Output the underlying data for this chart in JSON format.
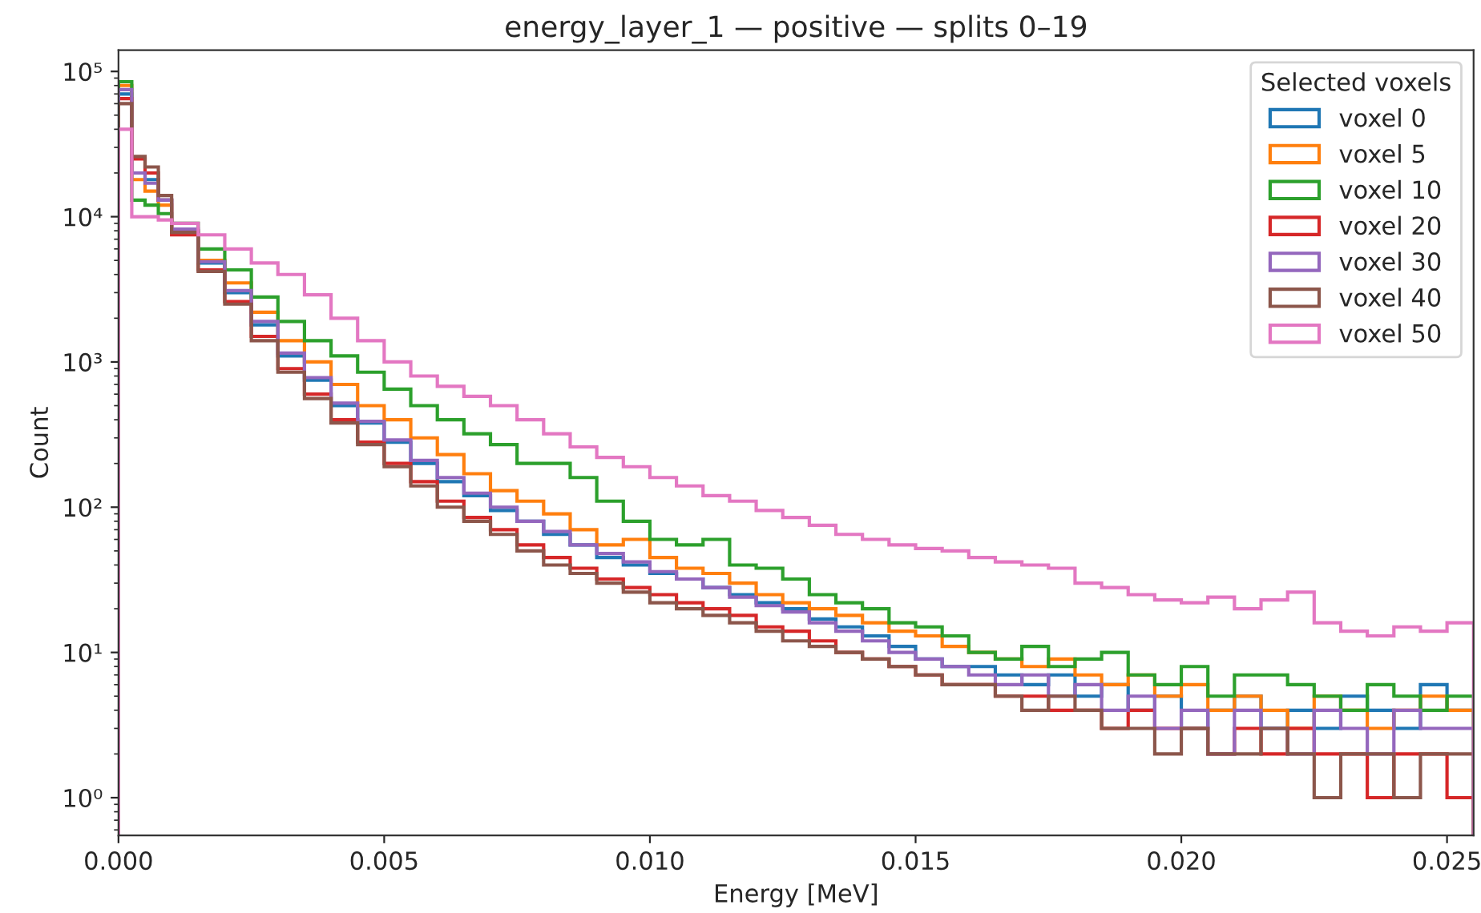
{
  "chart_data": {
    "type": "histogram",
    "title": "energy_layer_1 — positive — splits 0–19",
    "xlabel": "Energy [MeV]",
    "ylabel": "Count",
    "legend_title": "Selected voxels",
    "legend": "top right",
    "grid": false,
    "log": "y",
    "xlim": [
      0,
      0.0255
    ],
    "xticks": [
      {
        "value": 0,
        "label": "0.000"
      },
      {
        "value": 0.005,
        "label": "0.005"
      },
      {
        "value": 0.01,
        "label": "0.010"
      },
      {
        "value": 0.015,
        "label": "0.015"
      },
      {
        "value": 0.02,
        "label": "0.020"
      },
      {
        "value": 0.025,
        "label": "0.025"
      }
    ],
    "ylim": [
      0.55,
      140000
    ],
    "yticks": [
      {
        "value": 1,
        "label": "10⁰"
      },
      {
        "value": 10,
        "label": "10¹"
      },
      {
        "value": 100,
        "label": "10²"
      },
      {
        "value": 1000,
        "label": "10³"
      },
      {
        "value": 10000,
        "label": "10⁴"
      },
      {
        "value": 100000,
        "label": "10⁵"
      }
    ],
    "bins": [
      0,
      0.00025,
      0.0005,
      0.00075,
      0.001,
      0.0015,
      0.002,
      0.0025,
      0.003,
      0.0035,
      0.004,
      0.0045,
      0.005,
      0.0055,
      0.006,
      0.0065,
      0.007,
      0.0075,
      0.008,
      0.0085,
      0.009,
      0.0095,
      0.01,
      0.0105,
      0.011,
      0.0115,
      0.012,
      0.0125,
      0.013,
      0.0135,
      0.014,
      0.0145,
      0.015,
      0.0155,
      0.016,
      0.0165,
      0.017,
      0.0175,
      0.018,
      0.0185,
      0.019,
      0.0195,
      0.02,
      0.0205,
      0.021,
      0.0215,
      0.022,
      0.0225,
      0.023,
      0.0235,
      0.024,
      0.0245,
      0.025,
      0.0255
    ],
    "series": [
      {
        "name": "voxel 0",
        "color": "#1f77b4",
        "values": [
          70000,
          20000,
          18000,
          13000,
          8000,
          4800,
          3000,
          1800,
          1100,
          750,
          500,
          380,
          280,
          200,
          150,
          120,
          95,
          80,
          65,
          55,
          45,
          40,
          35,
          32,
          28,
          25,
          22,
          20,
          17,
          15,
          13,
          11,
          9,
          8,
          8,
          7,
          6,
          7,
          5,
          6,
          4,
          5,
          3,
          4,
          5,
          3,
          4,
          3,
          5,
          4,
          3,
          6,
          4
        ]
      },
      {
        "name": "voxel 5",
        "color": "#ff7f0e",
        "values": [
          80000,
          18000,
          15000,
          12000,
          8000,
          5000,
          3500,
          2200,
          1400,
          1000,
          700,
          500,
          400,
          300,
          230,
          170,
          130,
          110,
          90,
          70,
          55,
          60,
          45,
          38,
          35,
          30,
          25,
          22,
          20,
          18,
          16,
          14,
          13,
          11,
          10,
          9,
          8,
          9,
          7,
          6,
          7,
          5,
          6,
          4,
          5,
          4,
          3,
          5,
          4,
          3,
          4,
          5,
          4
        ]
      },
      {
        "name": "voxel 10",
        "color": "#2ca02c",
        "values": [
          85000,
          13000,
          12000,
          10500,
          9000,
          6000,
          4300,
          2800,
          1900,
          1400,
          1100,
          850,
          650,
          500,
          400,
          320,
          270,
          200,
          200,
          160,
          110,
          80,
          60,
          55,
          60,
          40,
          38,
          32,
          25,
          22,
          20,
          16,
          15,
          13,
          10,
          9,
          11,
          8,
          9,
          10,
          7,
          6,
          8,
          5,
          7,
          7,
          6,
          5,
          4,
          6,
          5,
          4,
          5
        ]
      },
      {
        "name": "voxel 20",
        "color": "#d62728",
        "values": [
          65000,
          25000,
          20000,
          13000,
          7500,
          4300,
          2600,
          1500,
          900,
          600,
          400,
          280,
          200,
          150,
          110,
          85,
          70,
          55,
          45,
          38,
          32,
          28,
          25,
          22,
          20,
          18,
          15,
          14,
          12,
          10,
          9,
          8,
          7,
          6,
          6,
          5,
          5,
          4,
          4,
          3,
          4,
          3,
          3,
          2,
          3,
          2,
          3,
          2,
          2,
          1,
          2,
          2,
          1
        ]
      },
      {
        "name": "voxel 30",
        "color": "#9467bd",
        "values": [
          75000,
          20000,
          17000,
          13000,
          8200,
          4900,
          3100,
          1900,
          1150,
          780,
          520,
          390,
          290,
          210,
          160,
          125,
          100,
          80,
          68,
          55,
          48,
          42,
          36,
          32,
          28,
          24,
          21,
          19,
          16,
          14,
          12,
          10,
          9,
          8,
          7,
          6,
          7,
          5,
          6,
          4,
          5,
          3,
          4,
          2,
          4,
          3,
          2,
          4,
          3,
          2,
          4,
          3,
          3
        ]
      },
      {
        "name": "voxel 40",
        "color": "#8c564b",
        "values": [
          60000,
          26000,
          22000,
          14000,
          7800,
          4200,
          2500,
          1400,
          850,
          560,
          380,
          270,
          190,
          140,
          100,
          80,
          65,
          50,
          40,
          35,
          30,
          26,
          22,
          20,
          18,
          16,
          14,
          12,
          11,
          10,
          9,
          8,
          7,
          6,
          6,
          5,
          4,
          5,
          4,
          3,
          3,
          2,
          3,
          2,
          2,
          3,
          2,
          1,
          2,
          2,
          1,
          2,
          2
        ]
      },
      {
        "name": "voxel 50",
        "color": "#e377c2",
        "values": [
          40000,
          10000,
          10000,
          9500,
          9000,
          7500,
          6000,
          4800,
          4000,
          2900,
          2000,
          1400,
          1000,
          800,
          680,
          580,
          500,
          400,
          320,
          260,
          220,
          190,
          160,
          140,
          120,
          110,
          95,
          85,
          75,
          65,
          60,
          55,
          52,
          50,
          45,
          42,
          40,
          38,
          30,
          28,
          25,
          23,
          22,
          24,
          20,
          23,
          26,
          16,
          14,
          13,
          15,
          14,
          16
        ]
      }
    ]
  }
}
